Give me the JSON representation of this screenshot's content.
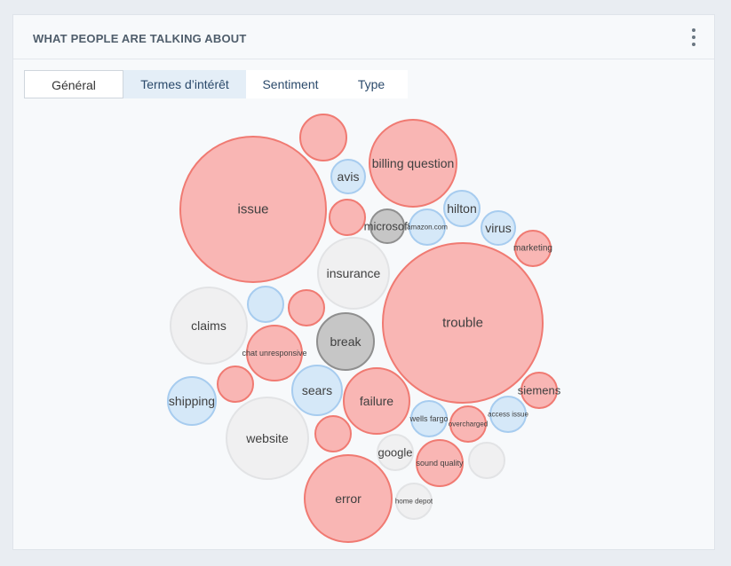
{
  "header": {
    "title": "WHAT PEOPLE ARE TALKING ABOUT"
  },
  "tabs": [
    {
      "label": "Général"
    },
    {
      "label": "Termes d’intérêt"
    },
    {
      "label": "Sentiment"
    },
    {
      "label": "Type"
    }
  ],
  "colors": {
    "negative_fill": "#f9b6b4",
    "negative_stroke": "#f07a72",
    "neutral_fill": "#f0f0f1",
    "neutral_stroke": "#e2e3e5",
    "positive_fill": "#d5e8f8",
    "positive_stroke": "#a7ccef",
    "dark_fill": "#c6c6c6",
    "dark_stroke": "#8f8f8f"
  },
  "bubbles": [
    {
      "label": "issue",
      "sentiment": "negative"
    },
    {
      "label": "trouble",
      "sentiment": "negative"
    },
    {
      "label": "billing question",
      "sentiment": "negative"
    },
    {
      "label": "error",
      "sentiment": "negative"
    },
    {
      "label": "website",
      "sentiment": "neutral"
    },
    {
      "label": "claims",
      "sentiment": "neutral"
    },
    {
      "label": "insurance",
      "sentiment": "neutral"
    },
    {
      "label": "failure",
      "sentiment": "negative"
    },
    {
      "label": "break",
      "sentiment": "dark"
    },
    {
      "label": "chat unresponsive",
      "sentiment": "negative"
    },
    {
      "label": "sears",
      "sentiment": "positive"
    },
    {
      "label": "shipping",
      "sentiment": "positive"
    },
    {
      "label": "",
      "sentiment": "negative"
    },
    {
      "label": "sound quality",
      "sentiment": "negative"
    },
    {
      "label": "siemens",
      "sentiment": "negative"
    },
    {
      "label": "marketing",
      "sentiment": "negative"
    },
    {
      "label": "virus",
      "sentiment": "positive"
    },
    {
      "label": "hilton",
      "sentiment": "positive"
    },
    {
      "label": "avis",
      "sentiment": "positive"
    },
    {
      "label": "microsoft",
      "sentiment": "dark"
    },
    {
      "label": "amazon.com",
      "sentiment": "positive"
    },
    {
      "label": "wells fargo",
      "sentiment": "positive"
    },
    {
      "label": "overcharged",
      "sentiment": "negative"
    },
    {
      "label": "access issue",
      "sentiment": "positive"
    },
    {
      "label": "google",
      "sentiment": "neutral"
    },
    {
      "label": "home depot",
      "sentiment": "neutral"
    },
    {
      "label": "",
      "sentiment": "negative"
    },
    {
      "label": "",
      "sentiment": "negative"
    },
    {
      "label": "",
      "sentiment": "positive"
    },
    {
      "label": "",
      "sentiment": "negative"
    },
    {
      "label": "",
      "sentiment": "negative"
    },
    {
      "label": "",
      "sentiment": "neutral"
    }
  ]
}
